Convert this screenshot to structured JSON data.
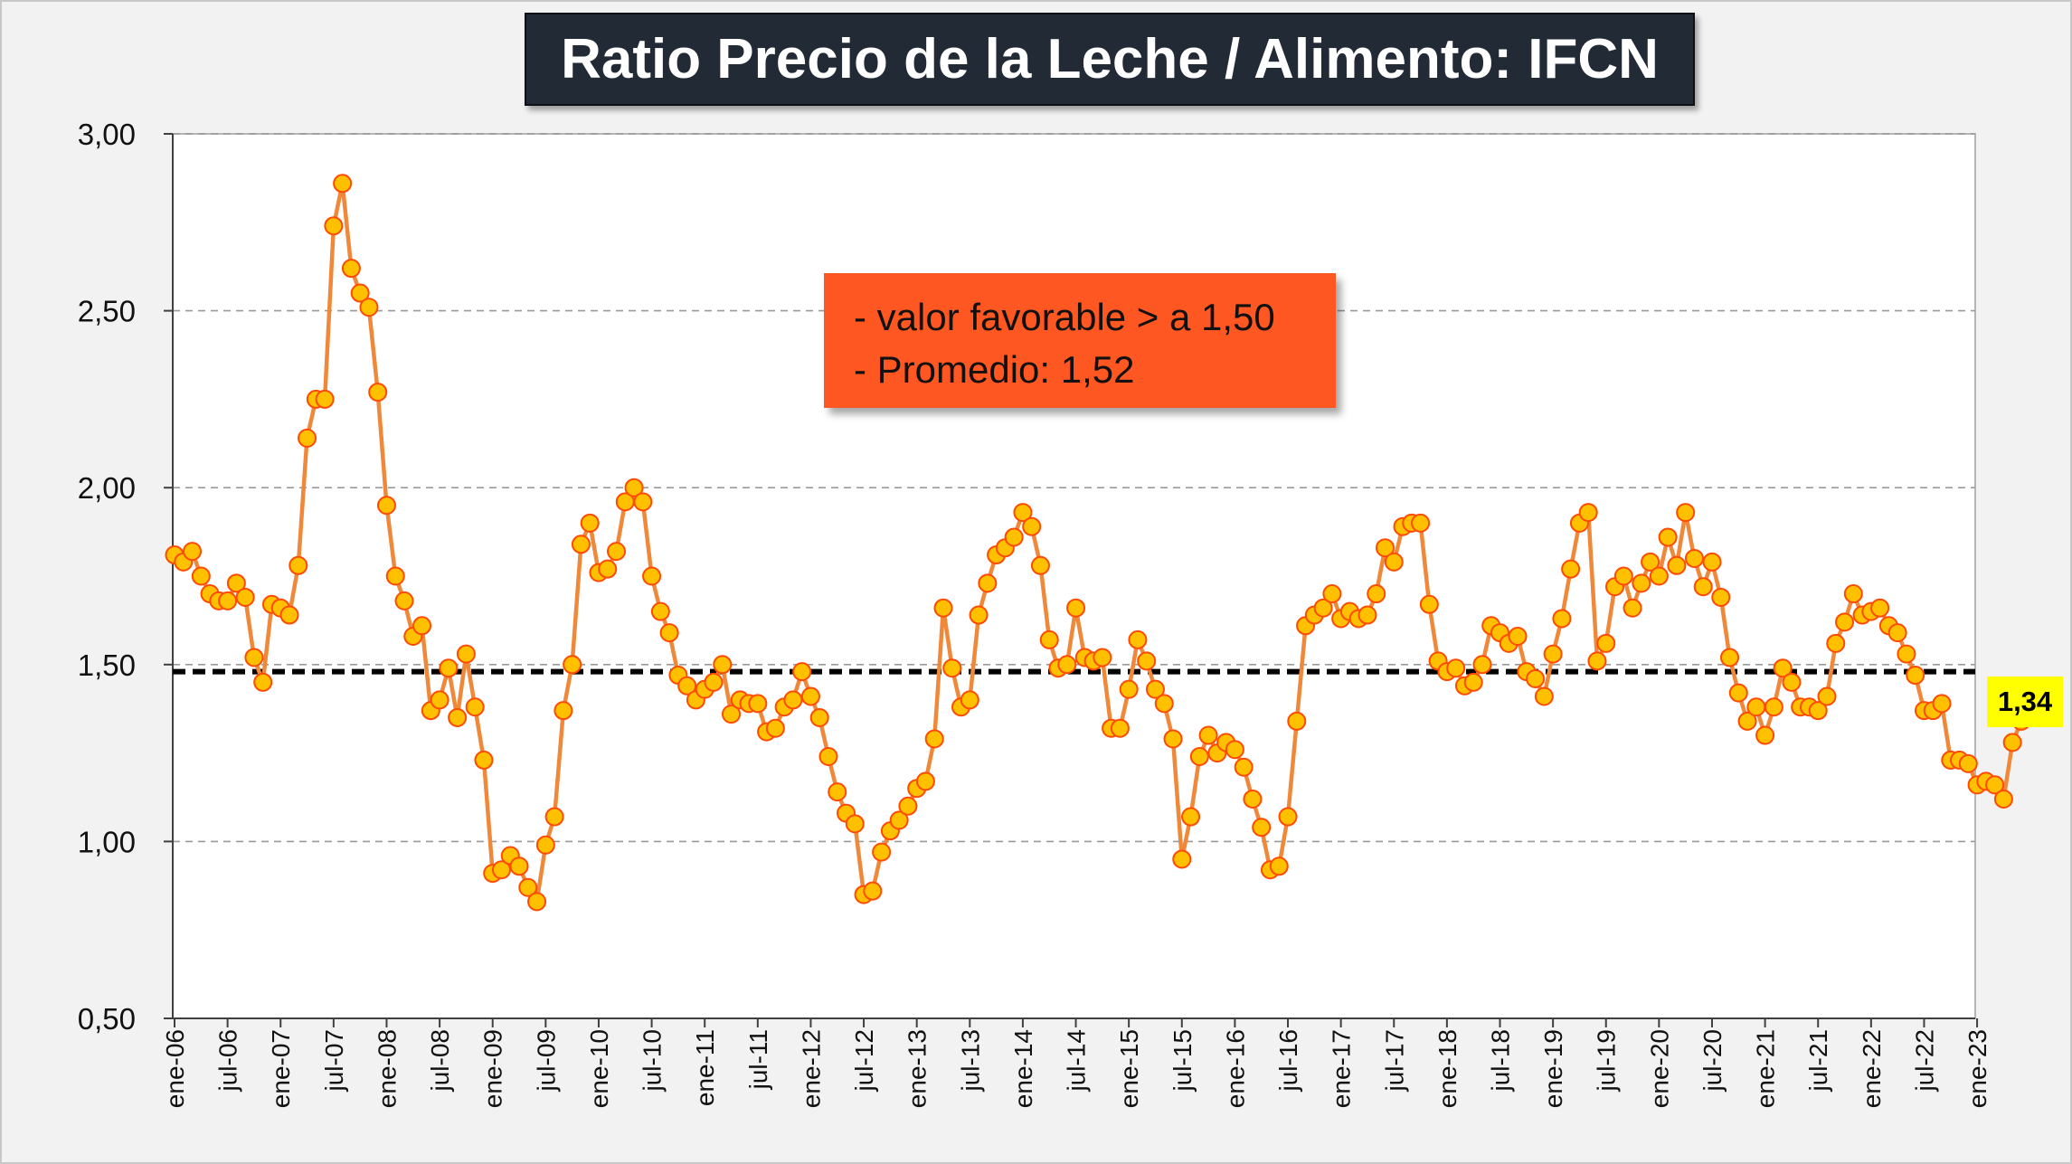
{
  "colors": {
    "series_line": "#f0883a",
    "marker_fill": "#ffc000",
    "marker_stroke": "#ff4a00",
    "reference_line": "#000000",
    "note_background": "#ff5722",
    "title_background": "#222a35",
    "badge_background": "#ffff00"
  },
  "note": {
    "line1": "- valor favorable > a 1,50",
    "line2": "- Promedio: 1,52"
  },
  "last_value_label": "1,34",
  "chart_data": {
    "type": "line",
    "title": "Ratio Precio de la Leche / Alimento: IFCN",
    "xlabel": "",
    "ylabel": "",
    "ylim": [
      0.5,
      3.0
    ],
    "yticks": [
      "0,50",
      "1,00",
      "1,50",
      "2,00",
      "2,50",
      "3,00"
    ],
    "grid": "horizontal dashed",
    "x_tick_labels": [
      "ene-06",
      "jul-06",
      "ene-07",
      "jul-07",
      "ene-08",
      "jul-08",
      "ene-09",
      "jul-09",
      "ene-10",
      "jul-10",
      "ene-11",
      "jul-11",
      "ene-12",
      "jul-12",
      "ene-13",
      "jul-13",
      "ene-14",
      "jul-14",
      "ene-15",
      "jul-15",
      "ene-16",
      "jul-16",
      "ene-17",
      "jul-17",
      "ene-18",
      "jul-18",
      "ene-19",
      "jul-19",
      "ene-20",
      "jul-20",
      "ene-21",
      "jul-21",
      "ene-22",
      "jul-22",
      "ene-23"
    ],
    "start_month": "ene-06",
    "reference_line": {
      "value": 1.48,
      "style": "dashed black"
    },
    "series": [
      {
        "values": [
          1.81,
          1.79,
          1.82,
          1.75,
          1.7,
          1.68,
          1.68,
          1.73,
          1.69,
          1.52,
          1.45,
          1.67,
          1.66,
          1.64,
          1.78,
          2.14,
          2.25,
          2.25,
          2.74,
          2.86,
          2.62,
          2.55,
          2.51,
          2.27,
          1.95,
          1.75,
          1.68,
          1.58,
          1.61,
          1.37,
          1.4,
          1.49,
          1.35,
          1.53,
          1.38,
          1.23,
          0.91,
          0.92,
          0.96,
          0.93,
          0.87,
          0.83,
          0.99,
          1.07,
          1.37,
          1.5,
          1.84,
          1.9,
          1.76,
          1.77,
          1.82,
          1.96,
          2.0,
          1.96,
          1.75,
          1.65,
          1.59,
          1.47,
          1.44,
          1.4,
          1.43,
          1.45,
          1.5,
          1.36,
          1.4,
          1.39,
          1.39,
          1.31,
          1.32,
          1.38,
          1.4,
          1.48,
          1.41,
          1.35,
          1.24,
          1.14,
          1.08,
          1.05,
          0.85,
          0.86,
          0.97,
          1.03,
          1.06,
          1.1,
          1.15,
          1.17,
          1.29,
          1.66,
          1.49,
          1.38,
          1.4,
          1.64,
          1.73,
          1.81,
          1.83,
          1.86,
          1.93,
          1.89,
          1.78,
          1.57,
          1.49,
          1.5,
          1.66,
          1.52,
          1.51,
          1.52,
          1.32,
          1.32,
          1.43,
          1.57,
          1.51,
          1.43,
          1.39,
          1.29,
          0.95,
          1.07,
          1.24,
          1.3,
          1.25,
          1.28,
          1.26,
          1.21,
          1.12,
          1.04,
          0.92,
          0.93,
          1.07,
          1.34,
          1.61,
          1.64,
          1.66,
          1.7,
          1.63,
          1.65,
          1.63,
          1.64,
          1.7,
          1.83,
          1.79,
          1.89,
          1.9,
          1.9,
          1.67,
          1.51,
          1.48,
          1.49,
          1.44,
          1.45,
          1.5,
          1.61,
          1.59,
          1.56,
          1.58,
          1.48,
          1.46,
          1.41,
          1.53,
          1.63,
          1.77,
          1.9,
          1.93,
          1.51,
          1.56,
          1.72,
          1.75,
          1.66,
          1.73,
          1.79,
          1.75,
          1.86,
          1.78,
          1.93,
          1.8,
          1.72,
          1.79,
          1.69,
          1.52,
          1.42,
          1.34,
          1.38,
          1.3,
          1.38,
          1.49,
          1.45,
          1.38,
          1.38,
          1.37,
          1.41,
          1.56,
          1.62,
          1.7,
          1.64,
          1.65,
          1.66,
          1.61,
          1.59,
          1.53,
          1.47,
          1.37,
          1.37,
          1.39,
          1.23,
          1.23,
          1.22,
          1.16,
          1.17,
          1.16,
          1.12,
          1.28,
          1.34
        ]
      }
    ]
  }
}
